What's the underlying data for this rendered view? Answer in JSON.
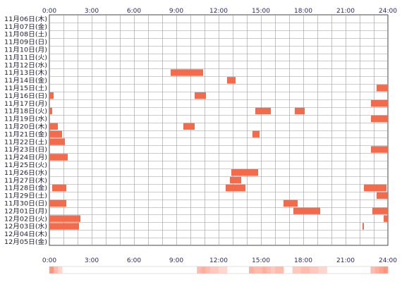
{
  "chart_data": {
    "type": "heatmap",
    "title": "",
    "xlabel": "",
    "ylabel": "",
    "x_ticks": [
      "0:00",
      "3:00",
      "6:00",
      "9:00",
      "12:00",
      "15:00",
      "18:00",
      "21:00",
      "24:00"
    ],
    "xlim": [
      0,
      24
    ],
    "grid": true,
    "colors": {
      "bar": "#f26b4d",
      "grid": "#9a9a9a",
      "frame": "#444444"
    },
    "rows": [
      {
        "label": "11月06日(木)",
        "segments": []
      },
      {
        "label": "11月07日(金)",
        "segments": []
      },
      {
        "label": "11月08日(土)",
        "segments": []
      },
      {
        "label": "11月09日(日)",
        "segments": []
      },
      {
        "label": "11月10日(月)",
        "segments": []
      },
      {
        "label": "11月11日(火)",
        "segments": []
      },
      {
        "label": "11月12日(水)",
        "segments": []
      },
      {
        "label": "11月13日(木)",
        "segments": [
          [
            8.6,
            10.9
          ]
        ]
      },
      {
        "label": "11月14日(金)",
        "segments": [
          [
            12.6,
            13.2
          ]
        ]
      },
      {
        "label": "11月15日(土)",
        "segments": [
          [
            23.2,
            24
          ]
        ]
      },
      {
        "label": "11月16日(日)",
        "segments": [
          [
            0,
            0.3
          ],
          [
            10.3,
            11.1
          ]
        ]
      },
      {
        "label": "11月17日(月)",
        "segments": [
          [
            22.8,
            24
          ]
        ]
      },
      {
        "label": "11月18日(火)",
        "segments": [
          [
            0,
            0.2
          ],
          [
            14.6,
            15.7
          ],
          [
            17.4,
            18.1
          ]
        ]
      },
      {
        "label": "11月19日(水)",
        "segments": [
          [
            22.8,
            24
          ]
        ]
      },
      {
        "label": "11月20日(木)",
        "segments": [
          [
            0,
            0.6
          ],
          [
            9.5,
            10.3
          ]
        ]
      },
      {
        "label": "11月21日(金)",
        "segments": [
          [
            0,
            0.9
          ],
          [
            14.4,
            14.9
          ]
        ]
      },
      {
        "label": "11月22日(土)",
        "segments": [
          [
            0,
            1.1
          ]
        ]
      },
      {
        "label": "11月23日(日)",
        "segments": [
          [
            22.8,
            24
          ]
        ]
      },
      {
        "label": "11月24日(月)",
        "segments": [
          [
            0,
            1.3
          ]
        ]
      },
      {
        "label": "11月25日(火)",
        "segments": []
      },
      {
        "label": "11月26日(水)",
        "segments": [
          [
            12.9,
            14.8
          ]
        ]
      },
      {
        "label": "11月27日(木)",
        "segments": [
          [
            12.8,
            13.6
          ]
        ]
      },
      {
        "label": "11月28日(金)",
        "segments": [
          [
            0.2,
            1.2
          ],
          [
            12.5,
            13.9
          ],
          [
            22.3,
            23.9
          ]
        ]
      },
      {
        "label": "11月29日(土)",
        "segments": [
          [
            23.2,
            24
          ]
        ]
      },
      {
        "label": "11月30日(日)",
        "segments": [
          [
            0,
            1.2
          ],
          [
            16.6,
            17.6
          ]
        ]
      },
      {
        "label": "12月01日(月)",
        "segments": [
          [
            17.3,
            19.2
          ],
          [
            22.9,
            24
          ]
        ]
      },
      {
        "label": "12月02日(火)",
        "segments": [
          [
            0,
            2.2
          ],
          [
            23.7,
            24
          ]
        ]
      },
      {
        "label": "12月03日(水)",
        "segments": [
          [
            0,
            2.1
          ],
          [
            22.2,
            22.3
          ]
        ]
      },
      {
        "label": "12月04日(木)",
        "segments": []
      },
      {
        "label": "12月05日(金)",
        "segments": []
      }
    ],
    "summary_strip": [
      0.8,
      0.5,
      0.3,
      0.0,
      0.0,
      0.0,
      0.0,
      0.0,
      0.0,
      0.0,
      0.0,
      0.0,
      0.0,
      0.0,
      0.0,
      0.0,
      0.0,
      0.0,
      0.0,
      0.0,
      0.0,
      0.0,
      0.0,
      0.0,
      0.0,
      0.0,
      0.0,
      0.0,
      0.0,
      0.0,
      0.0,
      0.0,
      0.0,
      0.0,
      0.5,
      0.6,
      0.5,
      0.4,
      0.4,
      0.3,
      0.3,
      0.0,
      0.0,
      0.0,
      0.0,
      0.0,
      0.6,
      0.5,
      0.5,
      0.6,
      0.5,
      0.4,
      0.5,
      0.5,
      0.0,
      0.0,
      0.4,
      0.4,
      0.5,
      0.5,
      0.4,
      0.4,
      0.3,
      0.3,
      0.0,
      0.0,
      0.0,
      0.0,
      0.0,
      0.0,
      0.0,
      0.0,
      0.0,
      0.0,
      0.5,
      0.6,
      0.7,
      0.8
    ]
  }
}
